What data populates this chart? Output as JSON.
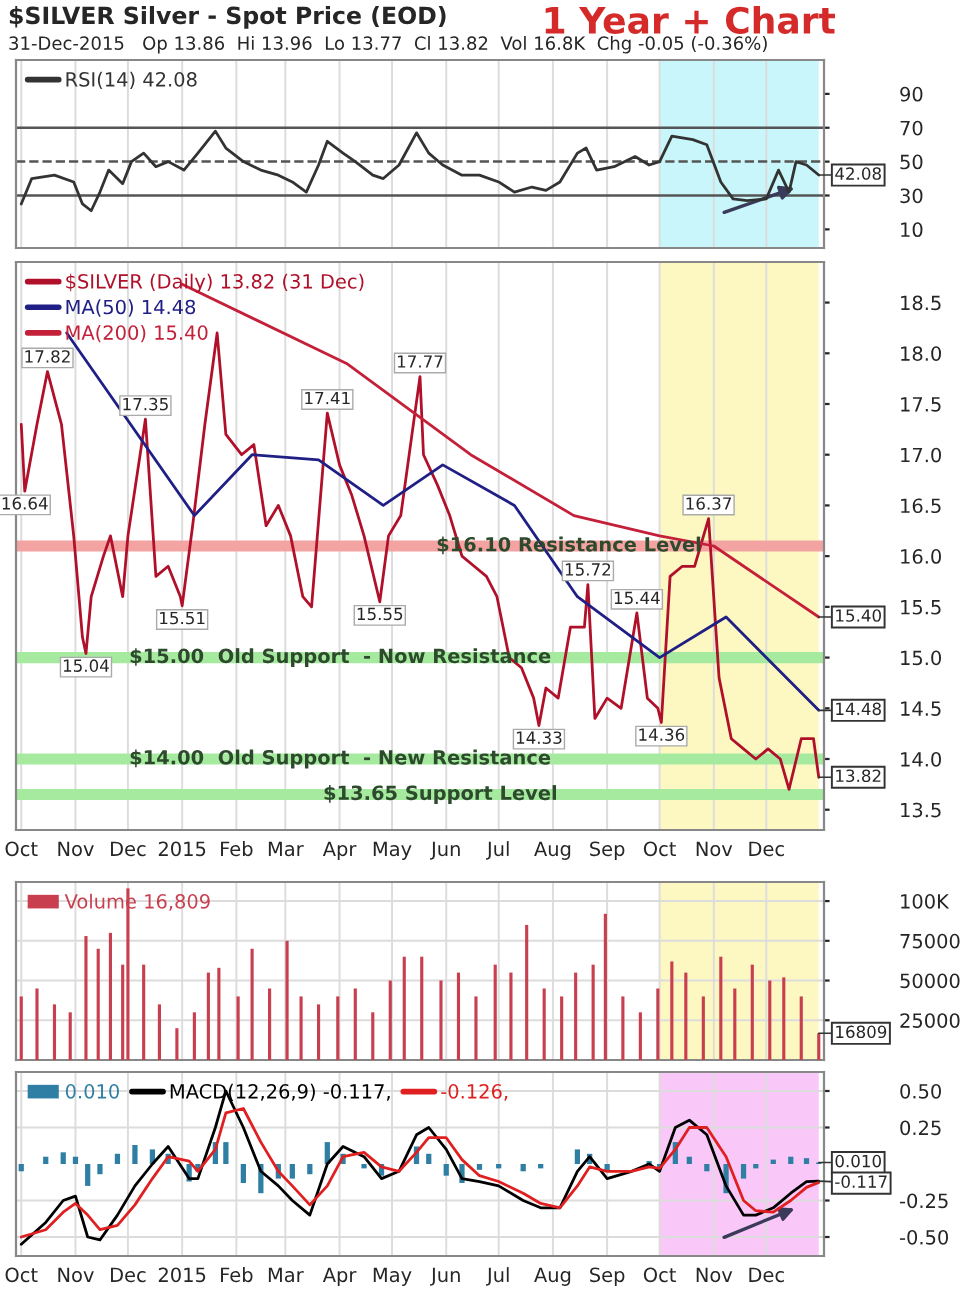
{
  "chart_data": [
    {
      "type": "line",
      "title": "$SILVER Silver - Spot Price (EOD)",
      "subtitle": "31-Dec-2015   Op 13.86  Hi 13.96  Lo 13.77  Cl 13.82  Vol 16.8K  Chg -0.05 (-0.36%)",
      "annotations": [
        "1 Year + Chart",
        {
          "text": "42.08",
          "x": "2015-12-31",
          "y": 42.08
        }
      ],
      "series": [
        {
          "name": "RSI(14) 42.08",
          "color": "#333333",
          "x": [
            "2014-10-01",
            "2014-10-07",
            "2014-10-20",
            "2014-10-31",
            "2014-11-05",
            "2014-11-10",
            "2014-11-15",
            "2014-11-20",
            "2014-11-28",
            "2014-12-03",
            "2014-12-10",
            "2014-12-17",
            "2014-12-24",
            "2015-01-02",
            "2015-01-10",
            "2015-01-20",
            "2015-01-26",
            "2015-02-05",
            "2015-02-15",
            "2015-02-25",
            "2015-03-05",
            "2015-03-13",
            "2015-03-20",
            "2015-03-25",
            "2015-04-03",
            "2015-04-10",
            "2015-04-20",
            "2015-04-26",
            "2015-05-05",
            "2015-05-15",
            "2015-05-22",
            "2015-05-30",
            "2015-06-10",
            "2015-06-20",
            "2015-07-01",
            "2015-07-10",
            "2015-07-20",
            "2015-07-28",
            "2015-08-05",
            "2015-08-15",
            "2015-08-20",
            "2015-08-26",
            "2015-09-05",
            "2015-09-17",
            "2015-09-25",
            "2015-10-01",
            "2015-10-08",
            "2015-10-20",
            "2015-10-28",
            "2015-11-05",
            "2015-11-12",
            "2015-11-20",
            "2015-12-01",
            "2015-12-08",
            "2015-12-14",
            "2015-12-18",
            "2015-12-24",
            "2015-12-31"
          ],
          "values": [
            25,
            40,
            42,
            38,
            25,
            21,
            32,
            45,
            37,
            50,
            55,
            47,
            50,
            45,
            55,
            68,
            58,
            50,
            45,
            42,
            38,
            32,
            48,
            62,
            55,
            50,
            42,
            40,
            48,
            67,
            55,
            48,
            42,
            42,
            38,
            32,
            35,
            33,
            38,
            55,
            58,
            45,
            47,
            53,
            48,
            50,
            65,
            63,
            60,
            38,
            28,
            27,
            28,
            45,
            32,
            50,
            48,
            42.08
          ]
        }
      ],
      "ylim": [
        -1,
        110
      ],
      "yticks": [
        10,
        30,
        50,
        70,
        90
      ],
      "xlim": [
        "2014-09-28",
        "2016-01-03"
      ],
      "xticks": [
        {
          "value": "2014-10-01",
          "label": null
        },
        {
          "value": "2014-11-01",
          "label": null
        },
        {
          "value": "2014-12-01",
          "label": null
        },
        {
          "value": "2015-01-01",
          "label": null
        },
        {
          "value": "2015-02-01",
          "label": null
        },
        {
          "value": "2015-03-01",
          "label": null
        },
        {
          "value": "2015-04-01",
          "label": null
        },
        {
          "value": "2015-05-01",
          "label": null
        },
        {
          "value": "2015-06-01",
          "label": null
        },
        {
          "value": "2015-07-01",
          "label": null
        },
        {
          "value": "2015-08-01",
          "label": null
        },
        {
          "value": "2015-09-01",
          "label": null
        },
        {
          "value": "2015-10-01",
          "label": null
        },
        {
          "value": "2015-11-01",
          "label": null
        },
        {
          "value": "2015-12-01",
          "label": null
        }
      ],
      "tick_labels": "y",
      "grid": "x",
      "legend": "top left",
      "ref_lines": [
        {
          "axis": "y",
          "value": 70,
          "color": "#555555",
          "line_style": "solid"
        },
        {
          "axis": "y",
          "value": 50,
          "color": "#555555",
          "line_style": "dashed"
        },
        {
          "axis": "y",
          "value": 30,
          "color": "#555555",
          "line_style": "solid"
        }
      ],
      "bands": [
        {
          "axis": "x",
          "from": "2015-10-01",
          "to": "2015-12-31",
          "color": "#c8f6fa"
        }
      ]
    },
    {
      "type": "line",
      "annotations": [
        {
          "text": "16.64",
          "x": "2014-10-03",
          "y": 16.64
        },
        {
          "text": "17.82",
          "x": "2014-10-16",
          "y": 17.82
        },
        {
          "text": "15.04",
          "x": "2014-11-07",
          "y": 15.04
        },
        {
          "text": "17.35",
          "x": "2014-12-11",
          "y": 17.35
        },
        {
          "text": "15.51",
          "x": "2015-01-01",
          "y": 15.51
        },
        {
          "text": "17.41",
          "x": "2015-03-25",
          "y": 17.41
        },
        {
          "text": "15.55",
          "x": "2015-04-24",
          "y": 15.55
        },
        {
          "text": "17.77",
          "x": "2015-05-17",
          "y": 17.77
        },
        {
          "text": "14.33",
          "x": "2015-07-24",
          "y": 14.33
        },
        {
          "text": "15.72",
          "x": "2015-08-21",
          "y": 15.72
        },
        {
          "text": "15.44",
          "x": "2015-09-18",
          "y": 15.44
        },
        {
          "text": "14.36",
          "x": "2015-10-02",
          "y": 14.36
        },
        {
          "text": "16.37",
          "x": "2015-10-29",
          "y": 16.37
        },
        {
          "text": "15.40",
          "x": "2015-12-31",
          "y": 15.4
        },
        {
          "text": "14.48",
          "x": "2015-12-31",
          "y": 14.48
        },
        {
          "text": "13.82",
          "x": "2015-12-31",
          "y": 13.82
        }
      ],
      "series": [
        {
          "name": "$SILVER (Daily) 13.82 (31 Dec)",
          "color": "#b0102a",
          "x": [
            "2014-10-01",
            "2014-10-03",
            "2014-10-10",
            "2014-10-16",
            "2014-10-24",
            "2014-10-31",
            "2014-11-05",
            "2014-11-07",
            "2014-11-10",
            "2014-11-17",
            "2014-11-21",
            "2014-11-28",
            "2014-12-01",
            "2014-12-11",
            "2014-12-17",
            "2014-12-24",
            "2014-12-31",
            "2015-01-01",
            "2015-01-07",
            "2015-01-14",
            "2015-01-21",
            "2015-01-26",
            "2015-02-04",
            "2015-02-11",
            "2015-02-18",
            "2015-02-25",
            "2015-03-04",
            "2015-03-11",
            "2015-03-16",
            "2015-03-25",
            "2015-04-01",
            "2015-04-08",
            "2015-04-15",
            "2015-04-24",
            "2015-04-29",
            "2015-05-06",
            "2015-05-14",
            "2015-05-17",
            "2015-05-19",
            "2015-05-27",
            "2015-06-03",
            "2015-06-10",
            "2015-06-17",
            "2015-06-24",
            "2015-06-30",
            "2015-07-07",
            "2015-07-14",
            "2015-07-21",
            "2015-07-24",
            "2015-07-28",
            "2015-08-04",
            "2015-08-11",
            "2015-08-19",
            "2015-08-21",
            "2015-08-25",
            "2015-09-01",
            "2015-09-09",
            "2015-09-18",
            "2015-09-24",
            "2015-09-30",
            "2015-10-02",
            "2015-10-07",
            "2015-10-14",
            "2015-10-21",
            "2015-10-29",
            "2015-11-04",
            "2015-11-11",
            "2015-11-18",
            "2015-11-25",
            "2015-12-02",
            "2015-12-09",
            "2015-12-14",
            "2015-12-21",
            "2015-12-28",
            "2015-12-31"
          ],
          "values": [
            17.3,
            16.64,
            17.3,
            17.82,
            17.3,
            16.2,
            15.2,
            15.04,
            15.6,
            16.0,
            16.2,
            15.6,
            16.2,
            17.35,
            15.8,
            15.9,
            15.6,
            15.51,
            16.3,
            17.3,
            18.2,
            17.2,
            17.0,
            17.1,
            16.3,
            16.5,
            16.2,
            15.6,
            15.5,
            17.41,
            16.9,
            16.6,
            16.2,
            15.55,
            16.2,
            16.4,
            17.4,
            17.77,
            17.0,
            16.7,
            16.4,
            16.0,
            15.9,
            15.8,
            15.6,
            15.0,
            14.9,
            14.6,
            14.33,
            14.7,
            14.6,
            15.3,
            15.3,
            15.72,
            14.4,
            14.6,
            14.5,
            15.44,
            14.6,
            14.5,
            14.36,
            15.8,
            15.9,
            15.9,
            16.37,
            14.8,
            14.2,
            14.1,
            14.0,
            14.1,
            14.0,
            13.7,
            14.2,
            14.2,
            13.82
          ]
        },
        {
          "name": "MA(50) 14.48",
          "color": "#1f1f85",
          "x": [
            "2014-10-27",
            "2015-01-08",
            "2015-02-10",
            "2015-03-20",
            "2015-04-26",
            "2015-05-30",
            "2015-07-10",
            "2015-08-15",
            "2015-10-01",
            "2015-11-08",
            "2015-12-31"
          ],
          "values": [
            18.2,
            16.4,
            17.0,
            16.95,
            16.5,
            16.9,
            16.5,
            15.6,
            15.0,
            15.4,
            14.48
          ]
        },
        {
          "name": "MA(200) 15.40",
          "color": "#c4203a",
          "x": [
            "2015-01-01",
            "2015-04-05",
            "2015-06-15",
            "2015-08-13",
            "2015-10-01",
            "2015-11-01",
            "2015-12-31"
          ],
          "values": [
            18.68,
            17.9,
            17.0,
            16.4,
            16.2,
            16.1,
            15.4
          ]
        }
      ],
      "ylim": [
        13.3,
        18.9
      ],
      "yticks": [
        13.5,
        {
          "value": 14,
          "label": "14.0"
        },
        14.5,
        {
          "value": 15,
          "label": "15.0"
        },
        15.5,
        {
          "value": 16,
          "label": "16.0"
        },
        16.5,
        {
          "value": 17,
          "label": "17.0"
        },
        17.5,
        {
          "value": 18,
          "label": "18.0"
        },
        18.5
      ],
      "xlim": [
        "2014-09-28",
        "2016-01-03"
      ],
      "xticks": [
        {
          "value": "2014-10-01",
          "label": "Oct"
        },
        {
          "value": "2014-11-01",
          "label": "Nov"
        },
        {
          "value": "2014-12-01",
          "label": "Dec"
        },
        {
          "value": "2015-01-01",
          "label": "2015"
        },
        {
          "value": "2015-02-01",
          "label": "Feb"
        },
        {
          "value": "2015-03-01",
          "label": "Mar"
        },
        {
          "value": "2015-04-01",
          "label": "Apr"
        },
        {
          "value": "2015-05-01",
          "label": "May"
        },
        {
          "value": "2015-06-01",
          "label": "Jun"
        },
        {
          "value": "2015-07-01",
          "label": "Jul"
        },
        {
          "value": "2015-08-01",
          "label": "Aug"
        },
        {
          "value": "2015-09-01",
          "label": "Sep"
        },
        {
          "value": "2015-10-01",
          "label": "Oct"
        },
        {
          "value": "2015-11-01",
          "label": "Nov"
        },
        {
          "value": "2015-12-01",
          "label": "Dec"
        }
      ],
      "grid": "x",
      "legend": "top left",
      "ref_lines": [
        {
          "axis": "y",
          "value": 16.1,
          "label": "$16.10 Resistance Level",
          "color": "#f4a3a3"
        },
        {
          "axis": "y",
          "value": 15.0,
          "label": "$15.00  Old Support  - Now Resistance",
          "color": "#a6eaa0"
        },
        {
          "axis": "y",
          "value": 14.0,
          "label": "$14.00  Old Support  - New Resistance",
          "color": "#a6eaa0"
        },
        {
          "axis": "y",
          "value": 13.65,
          "label": "$13.65 Support Level",
          "color": "#a6eaa0"
        }
      ],
      "bands": [
        {
          "axis": "x",
          "from": "2015-10-01",
          "to": "2015-12-31",
          "color": "#fdf8c2"
        }
      ]
    },
    {
      "type": "bar",
      "annotations": [
        {
          "text": "16809",
          "x": "2015-12-31",
          "y": 16809
        }
      ],
      "series": [
        {
          "name": "Volume 16,809",
          "color": "#c8404f",
          "x": [
            "2014-10-01",
            "2014-10-10",
            "2014-10-20",
            "2014-10-29",
            "2014-11-07",
            "2014-11-14",
            "2014-11-21",
            "2014-11-28",
            "2014-12-01",
            "2014-12-10",
            "2014-12-19",
            "2014-12-29",
            "2015-01-08",
            "2015-01-16",
            "2015-01-22",
            "2015-02-02",
            "2015-02-10",
            "2015-02-20",
            "2015-03-02",
            "2015-03-10",
            "2015-03-20",
            "2015-03-31",
            "2015-04-10",
            "2015-04-20",
            "2015-04-30",
            "2015-05-08",
            "2015-05-18",
            "2015-05-29",
            "2015-06-08",
            "2015-06-18",
            "2015-06-29",
            "2015-07-08",
            "2015-07-17",
            "2015-07-27",
            "2015-08-06",
            "2015-08-14",
            "2015-08-24",
            "2015-08-31",
            "2015-09-10",
            "2015-09-20",
            "2015-09-30",
            "2015-10-08",
            "2015-10-16",
            "2015-10-26",
            "2015-11-05",
            "2015-11-13",
            "2015-11-23",
            "2015-12-03",
            "2015-12-11",
            "2015-12-21",
            "2015-12-31"
          ],
          "values": [
            40000,
            45000,
            35000,
            30000,
            78000,
            70000,
            80000,
            60000,
            108000,
            60000,
            35000,
            20000,
            30000,
            55000,
            58000,
            40000,
            70000,
            45000,
            75000,
            40000,
            35000,
            40000,
            45000,
            30000,
            50000,
            65000,
            65000,
            50000,
            55000,
            40000,
            60000,
            55000,
            85000,
            45000,
            40000,
            55000,
            60000,
            92000,
            40000,
            30000,
            45000,
            62000,
            55000,
            40000,
            65000,
            45000,
            60000,
            50000,
            52000,
            40000,
            16809
          ]
        }
      ],
      "ylim": [
        0,
        112000
      ],
      "yticks": [
        25000,
        50000,
        75000,
        {
          "value": 100000,
          "label": "100K"
        }
      ],
      "xlim": [
        "2014-09-28",
        "2016-01-03"
      ],
      "xticks": [
        {
          "value": "2014-10-01",
          "label": null
        },
        {
          "value": "2014-11-01",
          "label": null
        },
        {
          "value": "2014-12-01",
          "label": null
        },
        {
          "value": "2015-01-01",
          "label": null
        },
        {
          "value": "2015-02-01",
          "label": null
        },
        {
          "value": "2015-03-01",
          "label": null
        },
        {
          "value": "2015-04-01",
          "label": null
        },
        {
          "value": "2015-05-01",
          "label": null
        },
        {
          "value": "2015-06-01",
          "label": null
        },
        {
          "value": "2015-07-01",
          "label": null
        },
        {
          "value": "2015-08-01",
          "label": null
        },
        {
          "value": "2015-09-01",
          "label": null
        },
        {
          "value": "2015-10-01",
          "label": null
        },
        {
          "value": "2015-11-01",
          "label": null
        },
        {
          "value": "2015-12-01",
          "label": null
        }
      ],
      "tick_labels": "y",
      "grid": true,
      "legend": "top left",
      "bands": [
        {
          "axis": "x",
          "from": "2015-10-01",
          "to": "2015-12-31",
          "color": "#fdf8c2"
        }
      ]
    },
    {
      "type": "line",
      "annotations": [
        {
          "text": "0.010",
          "x": "2015-12-31",
          "y": 0.01
        },
        {
          "text": "-0.117",
          "x": "2015-12-31",
          "y": -0.117
        }
      ],
      "series": [
        {
          "name": "0.010",
          "type": "bar",
          "color": "#2f7fa5",
          "x": [
            "2014-10-01",
            "2014-10-15",
            "2014-10-25",
            "2014-11-01",
            "2014-11-08",
            "2014-11-15",
            "2014-11-25",
            "2014-12-05",
            "2014-12-15",
            "2014-12-24",
            "2015-01-05",
            "2015-01-10",
            "2015-01-20",
            "2015-01-26",
            "2015-02-05",
            "2015-02-15",
            "2015-02-25",
            "2015-03-05",
            "2015-03-15",
            "2015-03-25",
            "2015-04-03",
            "2015-04-15",
            "2015-04-25",
            "2015-05-05",
            "2015-05-15",
            "2015-05-22",
            "2015-06-01",
            "2015-06-10",
            "2015-06-20",
            "2015-07-01",
            "2015-07-15",
            "2015-07-25",
            "2015-08-05",
            "2015-08-15",
            "2015-08-22",
            "2015-09-01",
            "2015-09-15",
            "2015-09-25",
            "2015-10-01",
            "2015-10-10",
            "2015-10-18",
            "2015-10-28",
            "2015-11-08",
            "2015-11-18",
            "2015-11-25",
            "2015-12-05",
            "2015-12-15",
            "2015-12-24",
            "2015-12-31"
          ],
          "values": [
            -0.05,
            0.05,
            0.08,
            0.05,
            -0.15,
            -0.07,
            0.07,
            0.13,
            0.1,
            0.07,
            -0.12,
            -0.05,
            0.15,
            0.15,
            -0.13,
            -0.2,
            -0.1,
            -0.1,
            -0.07,
            0.15,
            0.07,
            -0.03,
            -0.08,
            0.0,
            0.12,
            0.07,
            -0.08,
            -0.13,
            -0.04,
            -0.03,
            -0.05,
            -0.03,
            0.0,
            0.1,
            0.07,
            -0.05,
            0.0,
            0.02,
            -0.02,
            0.15,
            0.05,
            -0.05,
            -0.2,
            -0.1,
            -0.03,
            0.03,
            0.05,
            0.04,
            0.01
          ]
        },
        {
          "name": "MACD(12,26,9) -0.117,",
          "color": "#000000",
          "x": [
            "2014-10-01",
            "2014-10-15",
            "2014-10-25",
            "2014-11-01",
            "2014-11-08",
            "2014-11-15",
            "2014-11-25",
            "2014-12-05",
            "2014-12-15",
            "2014-12-24",
            "2015-01-05",
            "2015-01-10",
            "2015-01-20",
            "2015-01-26",
            "2015-02-05",
            "2015-02-15",
            "2015-02-25",
            "2015-03-05",
            "2015-03-15",
            "2015-03-25",
            "2015-04-03",
            "2015-04-15",
            "2015-04-25",
            "2015-05-05",
            "2015-05-15",
            "2015-05-22",
            "2015-06-01",
            "2015-06-10",
            "2015-06-20",
            "2015-07-01",
            "2015-07-15",
            "2015-07-25",
            "2015-08-05",
            "2015-08-15",
            "2015-08-22",
            "2015-09-01",
            "2015-09-15",
            "2015-09-25",
            "2015-10-01",
            "2015-10-10",
            "2015-10-18",
            "2015-10-28",
            "2015-11-08",
            "2015-11-18",
            "2015-11-25",
            "2015-12-05",
            "2015-12-15",
            "2015-12-24",
            "2015-12-31"
          ],
          "values": [
            -0.55,
            -0.4,
            -0.25,
            -0.22,
            -0.5,
            -0.52,
            -0.35,
            -0.15,
            0.0,
            0.12,
            -0.1,
            -0.1,
            0.25,
            0.5,
            0.25,
            -0.05,
            -0.15,
            -0.25,
            -0.35,
            0.0,
            0.12,
            0.05,
            -0.1,
            -0.05,
            0.2,
            0.25,
            0.1,
            -0.1,
            -0.12,
            -0.15,
            -0.25,
            -0.3,
            -0.3,
            -0.05,
            0.05,
            -0.1,
            -0.05,
            0.0,
            -0.05,
            0.25,
            0.3,
            0.2,
            -0.15,
            -0.35,
            -0.35,
            -0.3,
            -0.2,
            -0.12,
            -0.117
          ]
        },
        {
          "name": "-0.126,",
          "color": "#e02020",
          "x": [
            "2014-10-01",
            "2014-10-15",
            "2014-10-25",
            "2014-11-01",
            "2014-11-08",
            "2014-11-15",
            "2014-11-25",
            "2014-12-05",
            "2014-12-15",
            "2014-12-24",
            "2015-01-05",
            "2015-01-10",
            "2015-01-20",
            "2015-01-26",
            "2015-02-05",
            "2015-02-15",
            "2015-02-25",
            "2015-03-05",
            "2015-03-15",
            "2015-03-25",
            "2015-04-03",
            "2015-04-15",
            "2015-04-25",
            "2015-05-05",
            "2015-05-15",
            "2015-05-22",
            "2015-06-01",
            "2015-06-10",
            "2015-06-20",
            "2015-07-01",
            "2015-07-15",
            "2015-07-25",
            "2015-08-05",
            "2015-08-15",
            "2015-08-22",
            "2015-09-01",
            "2015-09-15",
            "2015-09-25",
            "2015-10-01",
            "2015-10-10",
            "2015-10-18",
            "2015-10-28",
            "2015-11-08",
            "2015-11-18",
            "2015-11-25",
            "2015-12-05",
            "2015-12-15",
            "2015-12-24",
            "2015-12-31"
          ],
          "values": [
            -0.5,
            -0.45,
            -0.33,
            -0.27,
            -0.35,
            -0.45,
            -0.42,
            -0.28,
            -0.1,
            0.05,
            0.02,
            -0.05,
            0.1,
            0.35,
            0.38,
            0.15,
            -0.05,
            -0.15,
            -0.28,
            -0.15,
            0.05,
            0.08,
            -0.02,
            -0.05,
            0.08,
            0.18,
            0.18,
            0.03,
            -0.08,
            -0.12,
            -0.2,
            -0.27,
            -0.3,
            -0.15,
            -0.02,
            -0.05,
            -0.05,
            -0.02,
            -0.03,
            0.1,
            0.25,
            0.25,
            0.05,
            -0.25,
            -0.32,
            -0.33,
            -0.25,
            -0.16,
            -0.126
          ]
        }
      ],
      "ylim": [
        -0.63,
        0.63
      ],
      "yticks": [
        {
          "value": 0.5,
          "label": "0.50"
        },
        {
          "value": 0.25,
          "label": "0.25"
        },
        {
          "value": -0.25,
          "label": "-0.25"
        },
        {
          "value": -0.5,
          "label": "-0.50"
        }
      ],
      "xlim": [
        "2014-09-28",
        "2016-01-03"
      ],
      "xticks": [
        {
          "value": "2014-10-01",
          "label": "Oct"
        },
        {
          "value": "2014-11-01",
          "label": "Nov"
        },
        {
          "value": "2014-12-01",
          "label": "Dec"
        },
        {
          "value": "2015-01-01",
          "label": "2015"
        },
        {
          "value": "2015-02-01",
          "label": "Feb"
        },
        {
          "value": "2015-03-01",
          "label": "Mar"
        },
        {
          "value": "2015-04-01",
          "label": "Apr"
        },
        {
          "value": "2015-05-01",
          "label": "May"
        },
        {
          "value": "2015-06-01",
          "label": "Jun"
        },
        {
          "value": "2015-07-01",
          "label": "Jul"
        },
        {
          "value": "2015-08-01",
          "label": "Aug"
        },
        {
          "value": "2015-09-01",
          "label": "Sep"
        },
        {
          "value": "2015-10-01",
          "label": "Oct"
        },
        {
          "value": "2015-11-01",
          "label": "Nov"
        },
        {
          "value": "2015-12-01",
          "label": "Dec"
        }
      ],
      "grid": true,
      "legend": "top left",
      "bands": [
        {
          "axis": "x",
          "from": "2015-10-01",
          "to": "2015-12-31",
          "color": "#f9c8f9"
        }
      ]
    }
  ]
}
